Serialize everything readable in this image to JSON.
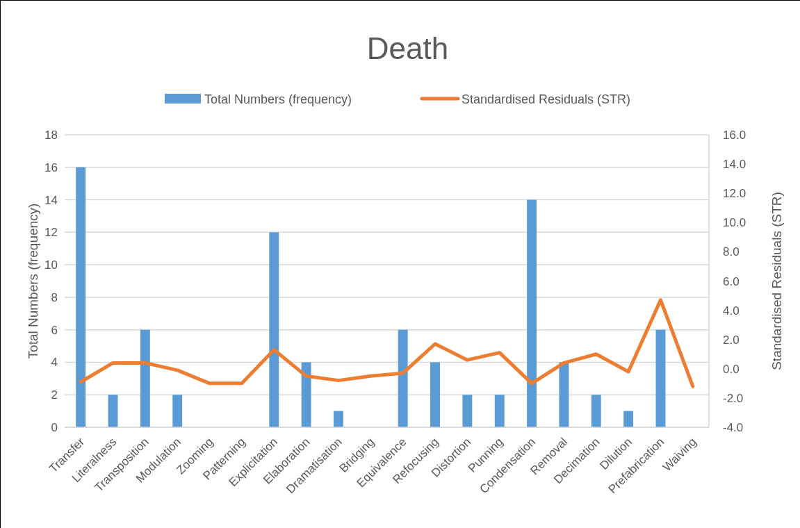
{
  "chart_data": {
    "type": "bar",
    "title": "Death",
    "categories": [
      "Transfer",
      "Literalness",
      "Transposition",
      "Modulation",
      "Zooming",
      "Patterning",
      "Explicitation",
      "Elaboration",
      "Dramatisation",
      "Bridging",
      "Equivalence",
      "Refocusing",
      "Distortion",
      "Punning",
      "Condensation",
      "Removal",
      "Decimation",
      "Dilution",
      "Prefabrication",
      "Waiving"
    ],
    "series": [
      {
        "name": "Total Numbers (frequency)",
        "color": "#5b9bd5",
        "values": [
          16,
          2,
          6,
          2,
          0,
          0,
          12,
          4,
          1,
          0,
          6,
          4,
          2,
          2,
          14,
          4,
          2,
          1,
          6,
          0
        ]
      },
      {
        "name": "Standardised Residuals (STR)",
        "type": "line",
        "axis": "y2",
        "color": "#ed7d31",
        "values": [
          -0.9,
          0.4,
          0.4,
          -0.1,
          -1.0,
          -1.0,
          1.3,
          -0.5,
          -0.8,
          -0.5,
          -0.3,
          1.7,
          0.6,
          1.1,
          -1.0,
          0.4,
          1.0,
          -0.2,
          4.7,
          -1.2
        ]
      }
    ],
    "ylabel": "Total Numbers (frequency)",
    "y2label": "Standardised Residuals (STR)",
    "ylim": [
      0,
      18
    ],
    "yticks": [
      0,
      2,
      4,
      6,
      8,
      10,
      12,
      14,
      16,
      18
    ],
    "y2lim": [
      -4,
      16
    ],
    "y2ticks": [
      {
        "value": -4,
        "label": "-4.0"
      },
      {
        "value": -2,
        "label": "-2.0"
      },
      {
        "value": 0,
        "label": "0.0"
      },
      {
        "value": 2,
        "label": "2.0"
      },
      {
        "value": 4,
        "label": "4.0"
      },
      {
        "value": 6,
        "label": "6.0"
      },
      {
        "value": 8,
        "label": "8.0"
      },
      {
        "value": 10,
        "label": "10.0"
      },
      {
        "value": 12,
        "label": "12.0"
      },
      {
        "value": 14,
        "label": "14.0"
      },
      {
        "value": 16,
        "label": "16.0"
      }
    ],
    "grid": "y",
    "legend": "top",
    "marker": "none"
  }
}
